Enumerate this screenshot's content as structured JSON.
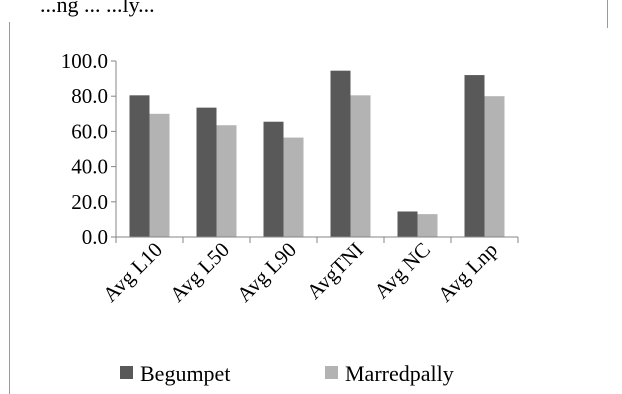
{
  "chart_data": {
    "type": "bar",
    "title": "...ng ... ...ly...",
    "categories": [
      "Avg L10",
      "Avg L50",
      "Avg L90",
      "AvgTNI",
      "Avg NC",
      "Avg Lnp"
    ],
    "series": [
      {
        "name": "Begumpet",
        "color": "#595959",
        "values": [
          80.5,
          73.5,
          65.5,
          94.5,
          14.5,
          92.0
        ]
      },
      {
        "name": "Marredpally",
        "color": "#b3b3b3",
        "values": [
          70.0,
          63.5,
          56.5,
          80.5,
          13.0,
          80.0
        ]
      }
    ],
    "ylim": [
      0,
      100
    ],
    "yticks": [
      "0.0",
      "20.0",
      "40.0",
      "60.0",
      "80.0",
      "100.0"
    ],
    "ytick_values": [
      0,
      20,
      40,
      60,
      80,
      100
    ],
    "grid": false,
    "legend_position": "bottom"
  }
}
